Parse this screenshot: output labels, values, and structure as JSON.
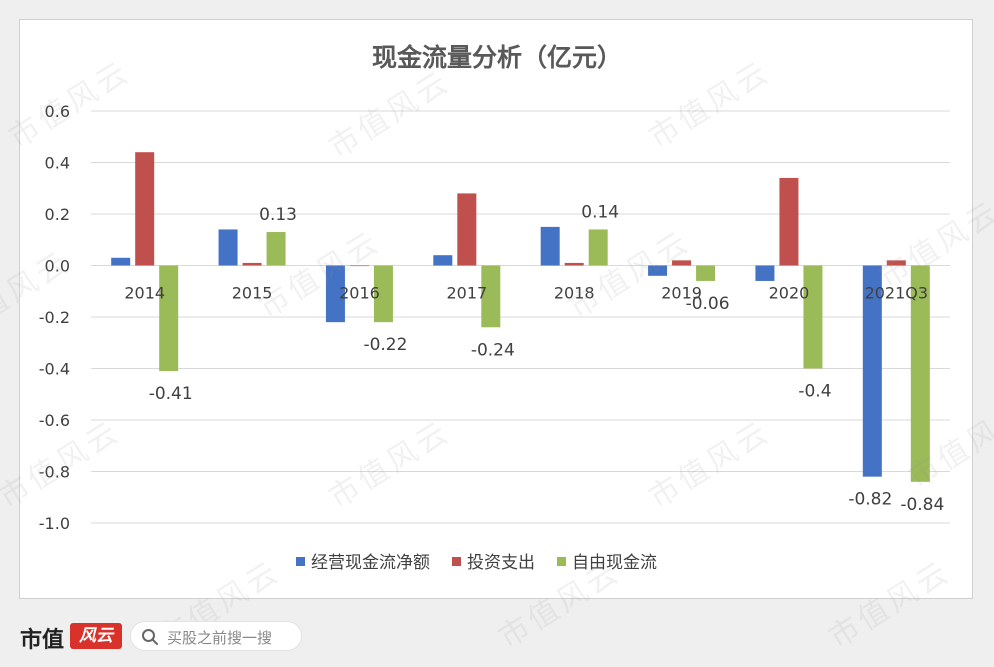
{
  "chart_data": {
    "type": "bar",
    "title": "现金流量分析（亿元）",
    "categories": [
      "2014",
      "2015",
      "2016",
      "2017",
      "2018",
      "2019",
      "2020",
      "2021Q3"
    ],
    "series": [
      {
        "name": "经营现金流净额",
        "color": "#4472c4",
        "values": [
          0.03,
          0.14,
          -0.22,
          0.04,
          0.15,
          -0.04,
          -0.06,
          -0.82
        ]
      },
      {
        "name": "投资支出",
        "color": "#c0504d",
        "values": [
          0.44,
          0.01,
          0.0,
          0.28,
          0.01,
          0.02,
          0.34,
          0.02
        ]
      },
      {
        "name": "自由现金流",
        "color": "#9bbb59",
        "values": [
          -0.41,
          0.13,
          -0.22,
          -0.24,
          0.14,
          -0.06,
          -0.4,
          -0.84
        ]
      }
    ],
    "data_labels": {
      "series": "自由现金流",
      "labels": [
        "-0.41",
        "0.13",
        "-0.22",
        "-0.24",
        "0.14",
        "-0.06",
        "-0.4",
        "-0.84"
      ]
    },
    "extra_labels": [
      {
        "series": "经营现金流净额",
        "category": "2021Q3",
        "text": "-0.82"
      }
    ],
    "y_ticks": [
      "0.6",
      "0.4",
      "0.2",
      "0.0",
      "-0.2",
      "-0.4",
      "-0.6",
      "-0.8",
      "-1.0"
    ],
    "ylim": [
      -1.0,
      0.6
    ],
    "grid": true,
    "legend_position": "bottom"
  },
  "watermark": "市值风云",
  "footer": {
    "brand": "市值",
    "logo_text": "风云",
    "search_placeholder": "买股之前搜一搜",
    "search_icon": "search-icon"
  }
}
